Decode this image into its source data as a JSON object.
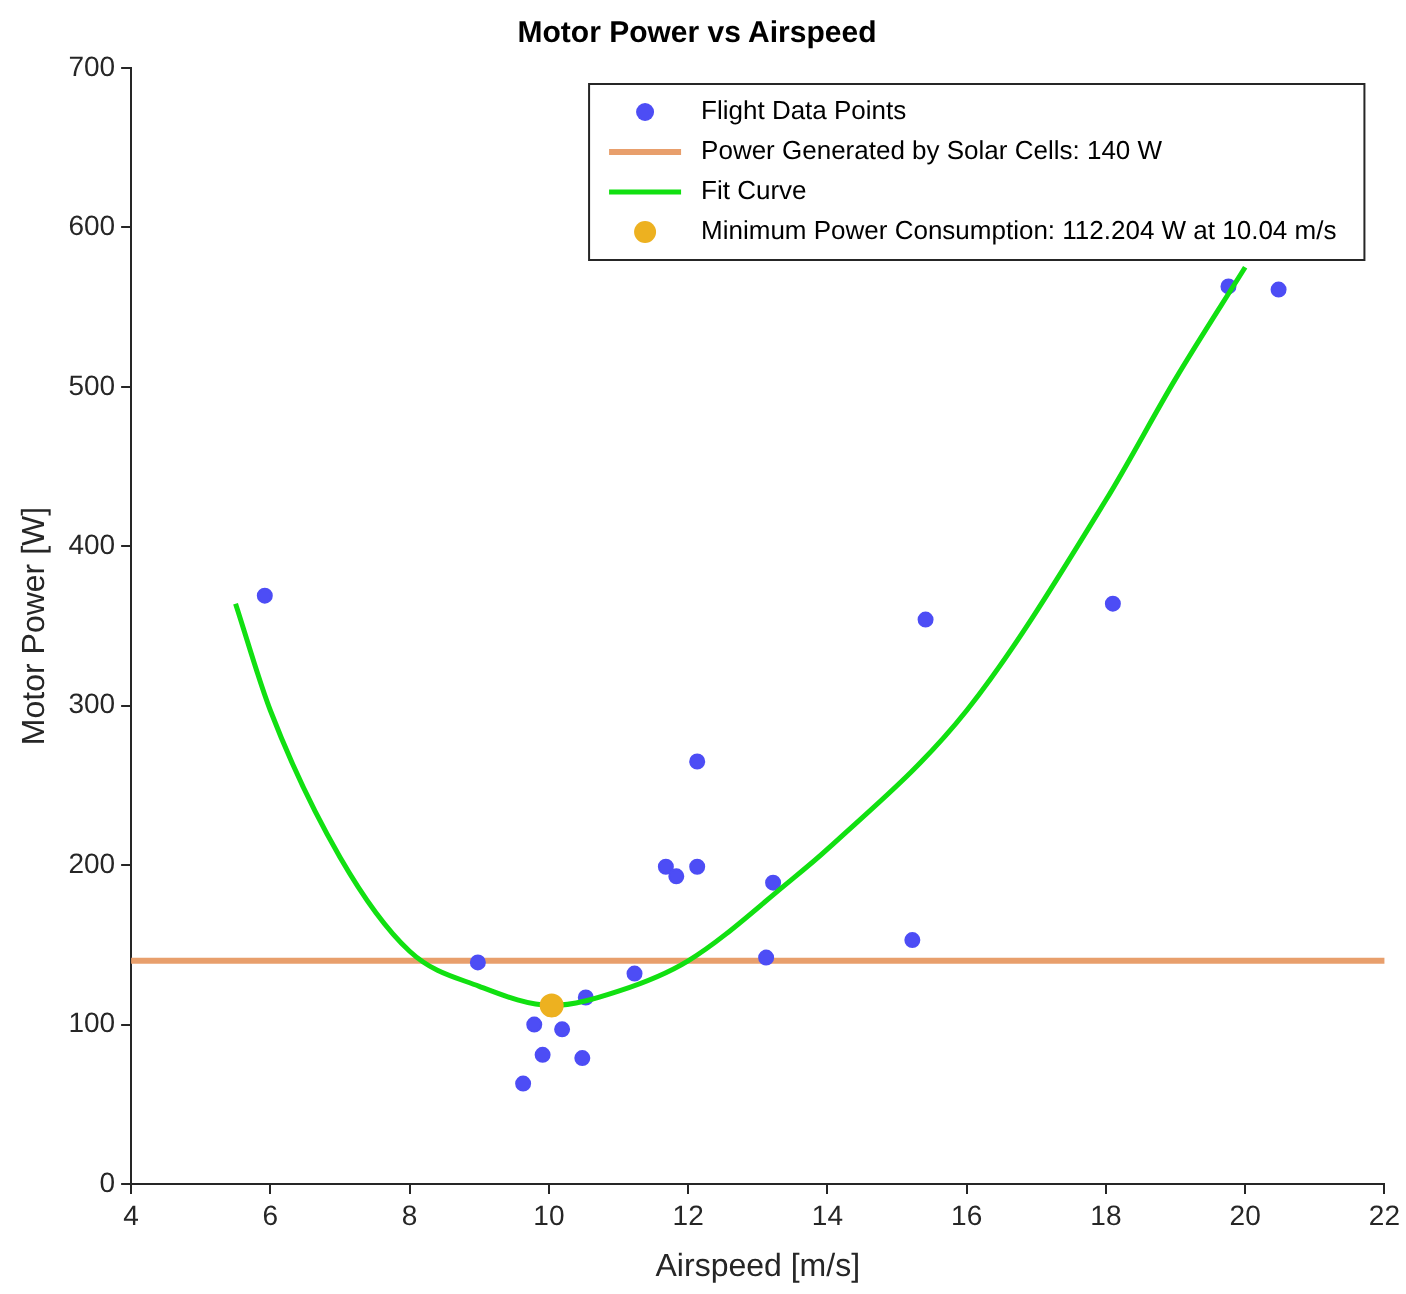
{
  "chart_data": {
    "type": "scatter",
    "title": "Motor Power vs Airspeed",
    "xlabel": "Airspeed [m/s]",
    "ylabel": "Motor Power [W]",
    "xlim": [
      4,
      22
    ],
    "xticks": [
      4,
      6,
      8,
      10,
      12,
      14,
      16,
      18,
      20,
      22
    ],
    "ylim": [
      0,
      700
    ],
    "yticks": [
      0,
      100,
      200,
      300,
      400,
      500,
      600,
      700
    ],
    "grid": false,
    "legend": "top right",
    "marker": "circle",
    "ref_lines": [
      {
        "axis": "y",
        "value": 140,
        "label": "Power Generated by Solar Cells: 140 W",
        "color": "#e89f6c"
      }
    ],
    "series": [
      {
        "name": "Flight Data Points",
        "color": "#4d4df5",
        "x": [
          5.92,
          8.98,
          9.63,
          9.79,
          9.91,
          10.19,
          10.48,
          10.53,
          11.23,
          11.68,
          11.83,
          12.13,
          12.13,
          13.12,
          13.22,
          15.22,
          15.41,
          18.1,
          19.76,
          20.48
        ],
        "values": [
          369,
          139,
          63,
          100,
          81,
          97,
          79,
          117,
          132,
          199,
          193,
          199,
          265,
          142,
          189,
          153,
          354,
          364,
          563,
          561
        ]
      },
      {
        "name": "Fit Curve",
        "type": "line",
        "marker": "none",
        "color": "#11e011",
        "x": [
          5.5,
          6,
          7,
          8,
          9,
          10.04,
          11,
          12,
          13.46,
          14,
          16,
          18,
          19,
          20
        ],
        "values": [
          364,
          297,
          205,
          146,
          124,
          112,
          121,
          140,
          190,
          210,
          297,
          429,
          505,
          575
        ]
      },
      {
        "name": "Minimum Power Consumption: 112.204 W at 10.04 m/s",
        "color": "#edb120",
        "x": [
          10.04
        ],
        "values": [
          112
        ]
      }
    ]
  }
}
